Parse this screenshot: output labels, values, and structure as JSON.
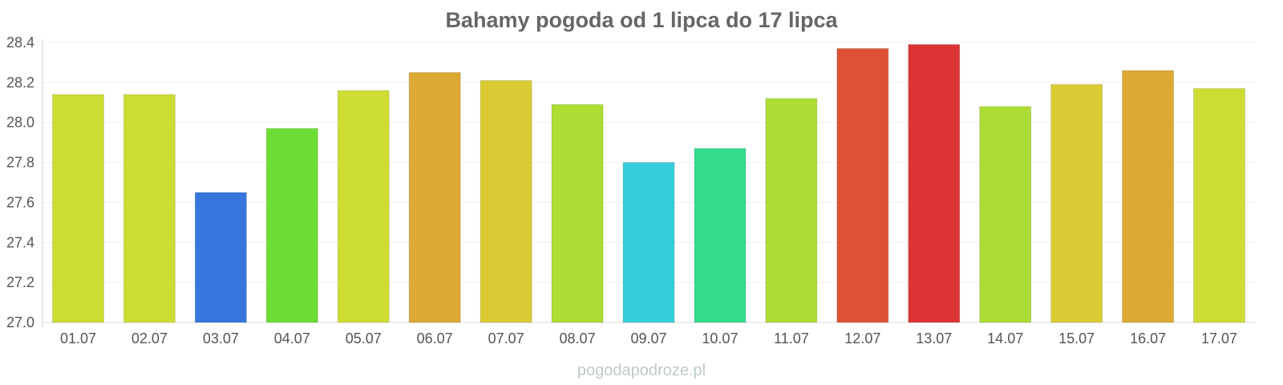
{
  "chart_data": {
    "type": "bar",
    "title": "Bahamy pogoda od 1 lipca do 17 lipca",
    "xlabel": "",
    "ylabel": "",
    "categories": [
      "01.07",
      "02.07",
      "03.07",
      "04.07",
      "05.07",
      "06.07",
      "07.07",
      "08.07",
      "09.07",
      "10.07",
      "11.07",
      "12.07",
      "13.07",
      "14.07",
      "15.07",
      "16.07",
      "17.07"
    ],
    "values": [
      28.14,
      28.14,
      27.65,
      27.97,
      28.16,
      28.25,
      28.21,
      28.09,
      27.8,
      27.87,
      28.12,
      28.37,
      28.39,
      28.08,
      28.19,
      28.26,
      28.17
    ],
    "colors": [
      "#cedd34",
      "#cedd34",
      "#3577dd",
      "#6bdd35",
      "#cedd34",
      "#dca934",
      "#dacb34",
      "#addd34",
      "#35cfdb",
      "#33dc8b",
      "#addd34",
      "#dd5235",
      "#dd3535",
      "#addd34",
      "#dacb34",
      "#dca934",
      "#cedd34"
    ],
    "ylim": [
      27.0,
      28.4
    ],
    "yticks": [
      "27.0",
      "27.2",
      "27.4",
      "27.6",
      "27.8",
      "28.0",
      "28.2",
      "28.4"
    ],
    "grid": true,
    "legend": "none"
  },
  "watermark": "pogodapodroze.pl"
}
